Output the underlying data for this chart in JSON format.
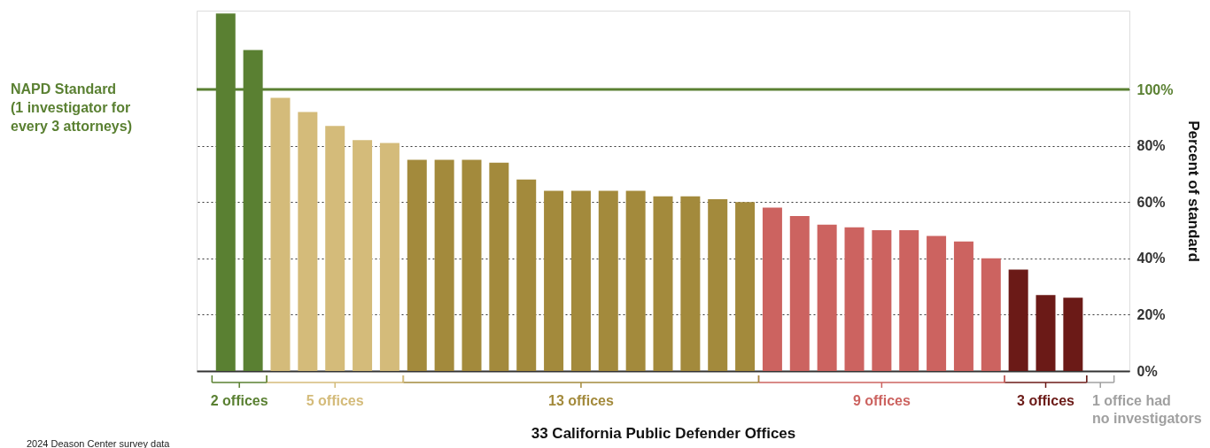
{
  "chart_data": {
    "type": "bar",
    "xlabel": "33 California Public Defender Offices",
    "ylabel": "Percent of standard",
    "categories": [
      null,
      null,
      null,
      null,
      null,
      null,
      null,
      null,
      null,
      null,
      null,
      null,
      null,
      null,
      null,
      null,
      null,
      null,
      null,
      null,
      null,
      null,
      null,
      null,
      null,
      null,
      null,
      null,
      null,
      null,
      null,
      null,
      null
    ],
    "values": [
      127,
      114,
      97,
      92,
      87,
      82,
      81,
      75,
      75,
      75,
      74,
      68,
      64,
      64,
      64,
      64,
      62,
      62,
      61,
      60,
      58,
      55,
      52,
      51,
      50,
      50,
      48,
      46,
      40,
      36,
      27,
      26,
      0
    ],
    "colors": [
      "#5a8032",
      "#5a8032",
      "#d4bb7a",
      "#d4bb7a",
      "#d4bb7a",
      "#d4bb7a",
      "#d4bb7a",
      "#a38a3c",
      "#a38a3c",
      "#a38a3c",
      "#a38a3c",
      "#a38a3c",
      "#a38a3c",
      "#a38a3c",
      "#a38a3c",
      "#a38a3c",
      "#a38a3c",
      "#a38a3c",
      "#a38a3c",
      "#a38a3c",
      "#cc6360",
      "#cc6360",
      "#cc6360",
      "#cc6360",
      "#cc6360",
      "#cc6360",
      "#cc6360",
      "#cc6360",
      "#cc6360",
      "#6b1a17",
      "#6b1a17",
      "#6b1a17",
      "#a0a0a0"
    ],
    "ylim": [
      0,
      128
    ],
    "yticks": [
      {
        "value": 0,
        "label": "0%"
      },
      {
        "value": 20,
        "label": "20%"
      },
      {
        "value": 40,
        "label": "40%"
      },
      {
        "value": 60,
        "label": "60%"
      },
      {
        "value": 80,
        "label": "80%"
      },
      {
        "value": 100,
        "label": "100%"
      }
    ],
    "grid": "y",
    "tick_labels": "y",
    "ref_lines": [
      {
        "axis": "y",
        "value": 100,
        "label": "NAPD Standard\n(1 investigator for\nevery 3 attorneys)",
        "color": "#5a8032",
        "line_style": "solid"
      }
    ],
    "annotations": [
      "2 offices",
      "5 offices",
      "13 offices",
      "9 offices",
      "3 offices",
      "1 office had\nno investigators",
      "2024 Deason Center survey data"
    ]
  }
}
